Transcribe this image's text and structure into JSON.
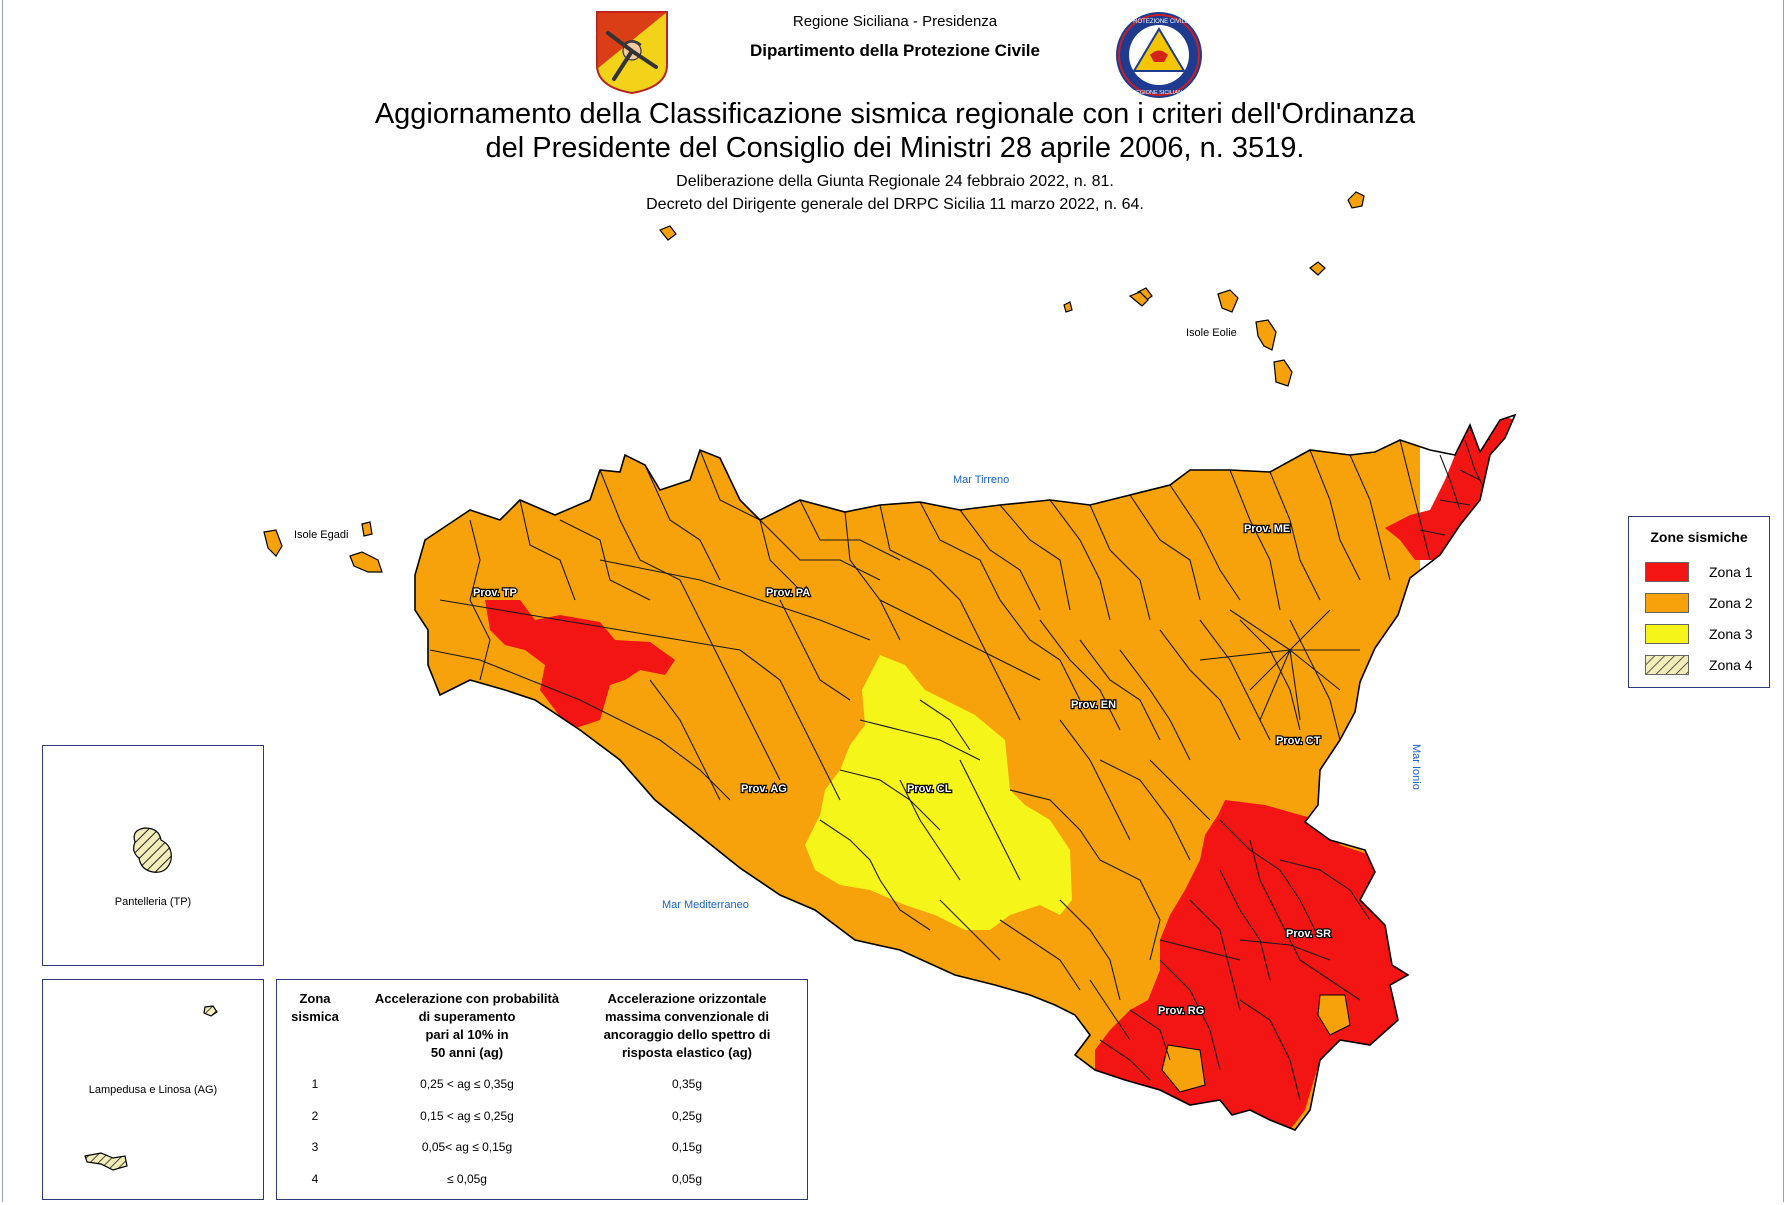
{
  "header": {
    "line1": "Regione Siciliana - Presidenza",
    "line2": "Dipartimento della Protezione Civile",
    "title_line1": "Aggiornamento della Classificazione sismica regionale con i criteri dell'Ordinanza",
    "title_line2": "del Presidente del Consiglio dei Ministri 28 aprile 2006, n. 3519.",
    "sub1": "Deliberazione della Giunta Regionale 24 febbraio 2022, n. 81.",
    "sub2": "Decreto del Dirigente generale del DRPC Sicilia 11 marzo 2022, n. 64."
  },
  "logos": {
    "region": "trinacria-coat-of-arms",
    "civil_protection": "protezione-civile-sicilia-seal",
    "seal_text_top": "PROTEZIONE CIVILE",
    "seal_text_bottom": "REGIONE SICILIANA"
  },
  "map": {
    "seas": {
      "north": "Mar Tirreno",
      "east": "Mar Ionio",
      "south": "Mar Mediterraneo"
    },
    "islands": {
      "aeolian": "Isole Eolie",
      "egadi": "Isole Egadi"
    },
    "provinces": {
      "tp": "Prov. TP",
      "pa": "Prov. PA",
      "me": "Prov. ME",
      "ag": "Prov. AG",
      "cl": "Prov. CL",
      "en": "Prov. EN",
      "ct": "Prov. CT",
      "sr": "Prov. SR",
      "rg": "Prov. RG"
    }
  },
  "insets": {
    "pantelleria": "Pantelleria (TP)",
    "lampedusa": "Lampedusa e Linosa (AG)"
  },
  "legend": {
    "title": "Zone sismiche",
    "items": [
      {
        "label": "Zona 1",
        "color": "#f31414"
      },
      {
        "label": "Zona 2",
        "color": "#f7a10b"
      },
      {
        "label": "Zona 3",
        "color": "#f5f51a"
      },
      {
        "label": "Zona 4",
        "color": "#f3edba",
        "pattern": "hatched"
      }
    ]
  },
  "table": {
    "headers": [
      "Zona sismica",
      "Accelerazione con probabilità di superamento pari al 10% in 50 anni (ag)",
      "Accelerazione orizzontale massima convenzionale di ancoraggio dello spettro di risposta elastico (ag)"
    ],
    "header_lines": [
      [
        "Zona",
        "sismica"
      ],
      [
        "Accelerazione con probabilità",
        "di superamento",
        "pari al 10% in",
        "50 anni (ag)"
      ],
      [
        "Accelerazione orizzontale",
        "massima convenzionale di",
        "ancoraggio dello spettro di",
        "risposta elastico (ag)"
      ]
    ],
    "rows": [
      [
        "1",
        "0,25 < ag ≤ 0,35g",
        "0,35g"
      ],
      [
        "2",
        "0,15 < ag ≤ 0,25g",
        "0,25g"
      ],
      [
        "3",
        "0,05< ag ≤ 0,15g",
        "0,15g"
      ],
      [
        "4",
        "≤ 0,05g",
        "0,05g"
      ]
    ]
  },
  "colors": {
    "zona1": "#f31414",
    "zona2": "#f7a10b",
    "zona3": "#f5f51a",
    "zona4": "#f3edba",
    "frame": "#2f3a7a",
    "sea_text": "#1a62c9"
  }
}
